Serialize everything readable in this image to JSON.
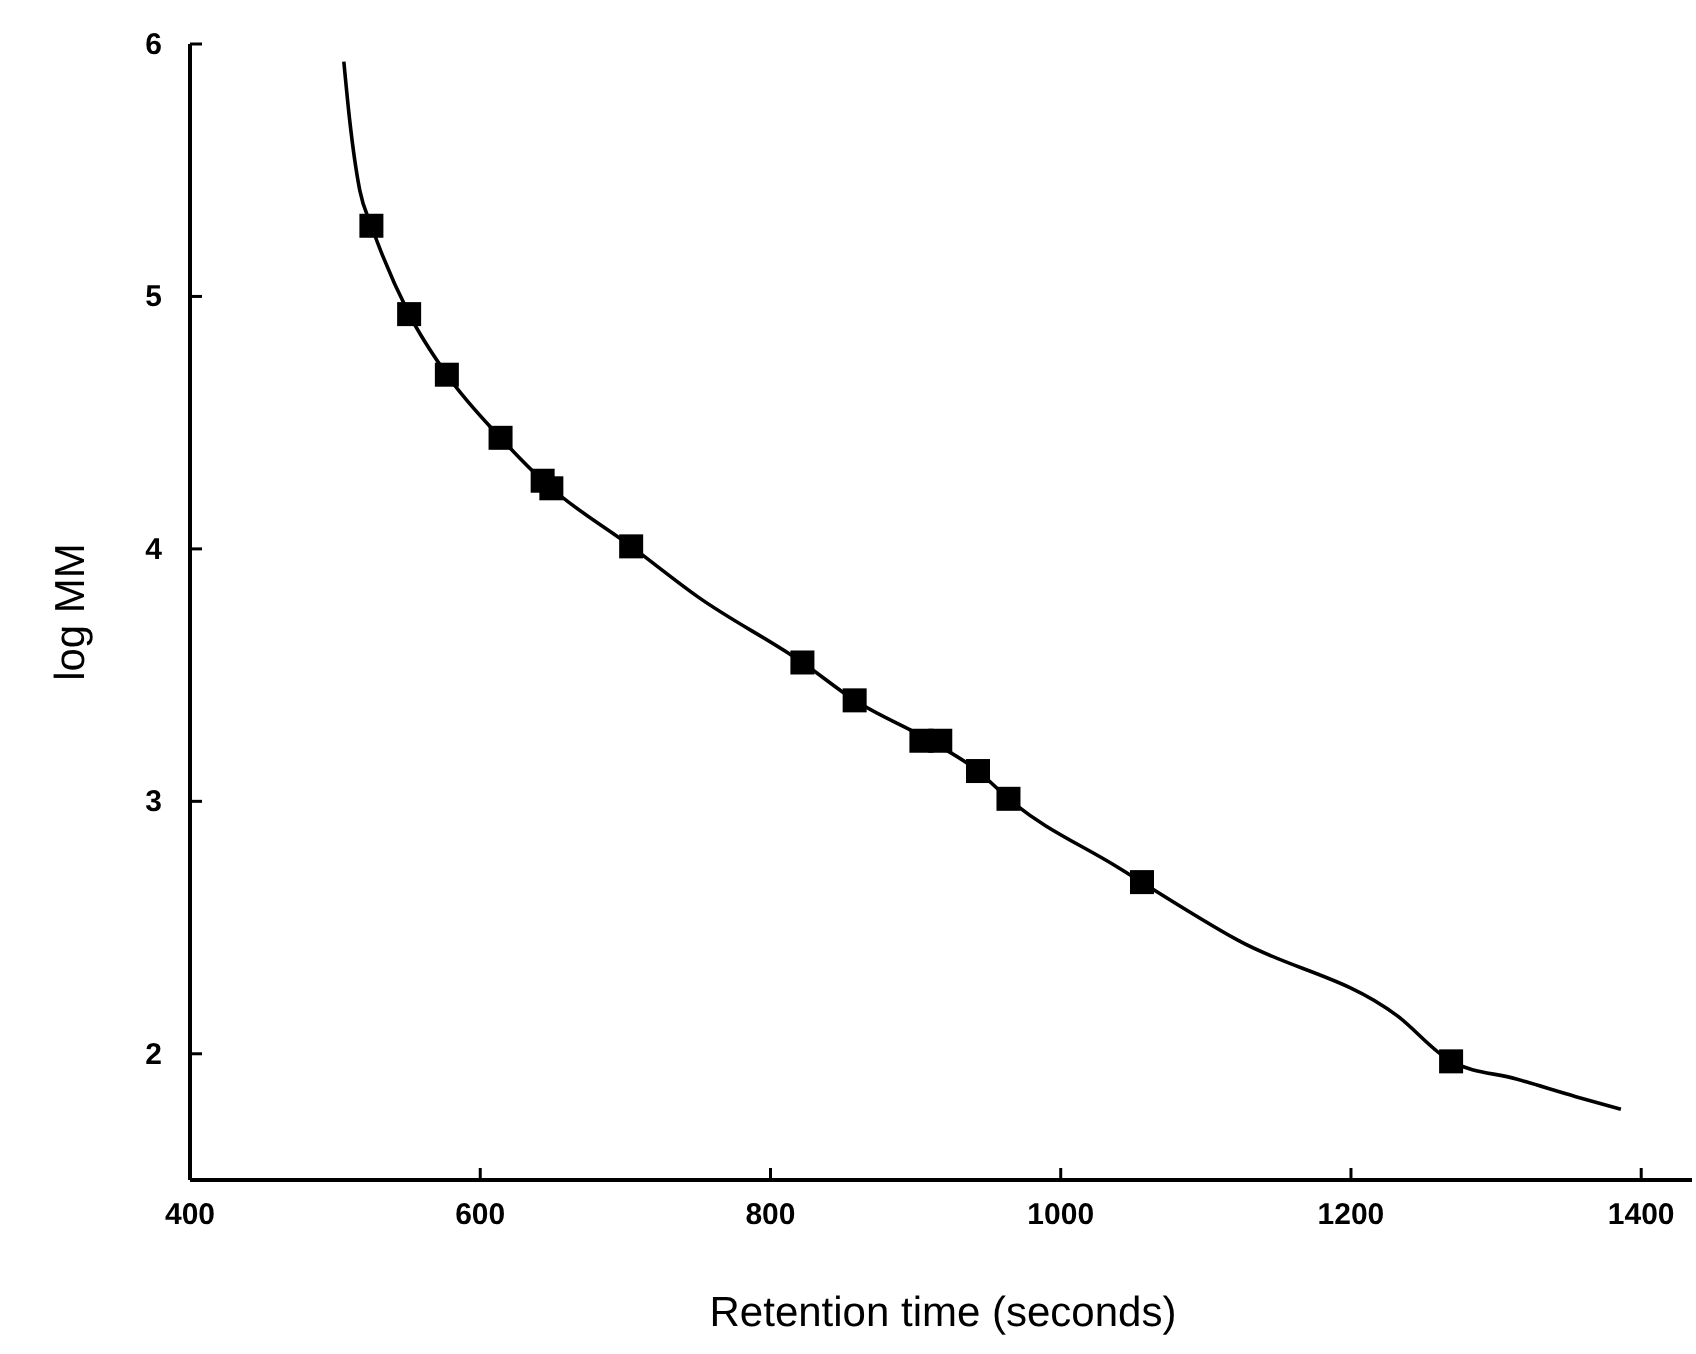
{
  "chart_data": {
    "type": "scatter",
    "xlabel": "Retention time (seconds)",
    "ylabel": "log MM",
    "xlim": [
      400,
      1435
    ],
    "ylim": [
      1.5,
      6
    ],
    "xticks": [
      400,
      600,
      800,
      1000,
      1200,
      1400
    ],
    "yticks": [
      2,
      3,
      4,
      5,
      6
    ],
    "grid": false,
    "series": [
      {
        "type": "line",
        "color": "#000000",
        "marker": "none",
        "line_style": "solid",
        "x": [
          506,
          510,
          517,
          525,
          551,
          577,
          614,
          645,
          704,
          750,
          822,
          858,
          910,
          943,
          964,
          1039,
          1122,
          1232,
          1269,
          1314,
          1355,
          1386
        ],
        "values": [
          5.93,
          5.7,
          5.42,
          5.28,
          4.93,
          4.69,
          4.44,
          4.26,
          4.01,
          3.81,
          3.55,
          3.4,
          3.24,
          3.12,
          3.01,
          2.74,
          2.45,
          2.15,
          1.97,
          1.9,
          1.83,
          1.78
        ]
      },
      {
        "color": "#000000",
        "marker": "square",
        "x": [
          525,
          551,
          577,
          614,
          643,
          649,
          704,
          822,
          858,
          904,
          917,
          943,
          964,
          1056,
          1269
        ],
        "values": [
          5.28,
          4.93,
          4.69,
          4.44,
          4.27,
          4.24,
          4.01,
          3.55,
          3.4,
          3.24,
          3.24,
          3.12,
          3.01,
          2.68,
          1.97
        ]
      }
    ]
  }
}
